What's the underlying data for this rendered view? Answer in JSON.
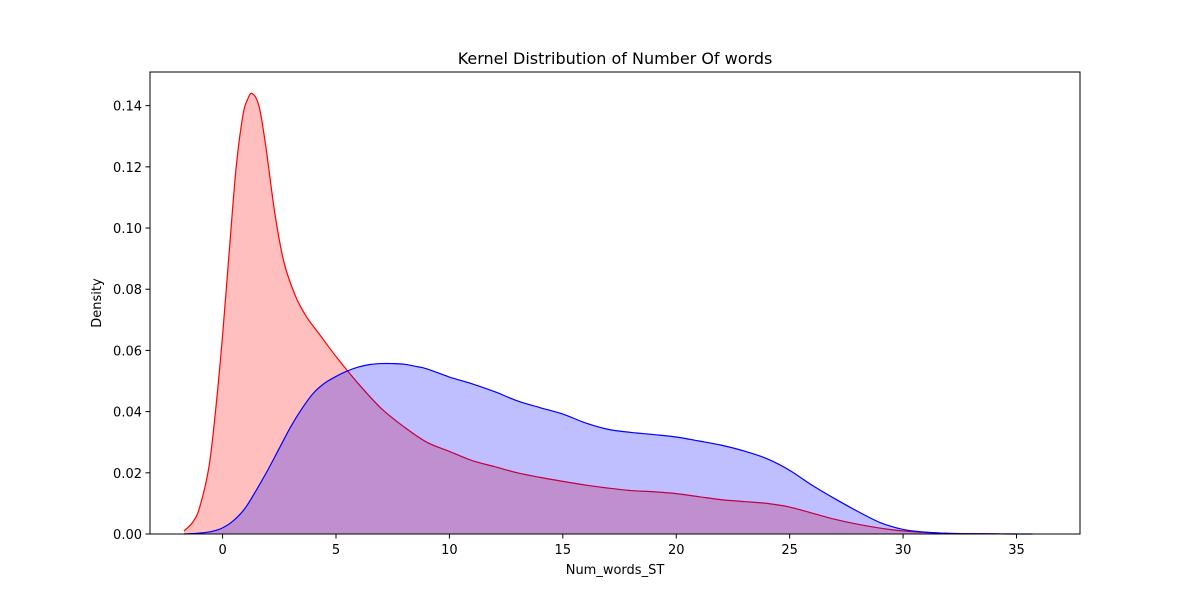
{
  "chart_data": {
    "type": "area",
    "title": "Kernel Distribution of Number Of words",
    "xlabel": "Num_words_ST",
    "ylabel": "Density",
    "xlim": [
      -3.2,
      37.8
    ],
    "ylim": [
      0,
      0.151
    ],
    "xticks": [
      0,
      5,
      10,
      15,
      20,
      25,
      30,
      35
    ],
    "xtick_labels": [
      "0",
      "5",
      "10",
      "15",
      "20",
      "25",
      "30",
      "35"
    ],
    "yticks": [
      0.0,
      0.02,
      0.04,
      0.06,
      0.08,
      0.1,
      0.12,
      0.14
    ],
    "ytick_labels": [
      "0.00",
      "0.02",
      "0.04",
      "0.06",
      "0.08",
      "0.10",
      "0.12",
      "0.14"
    ],
    "grid": false,
    "legend": "none",
    "series": [
      {
        "color": "#ff0000",
        "fill": "#ffbfbf",
        "x": [
          -1.7,
          -1.3,
          -1.0,
          -0.6,
          -0.3,
          0.0,
          0.3,
          0.6,
          0.9,
          1.1,
          1.3,
          1.6,
          1.9,
          2.3,
          2.7,
          3.2,
          3.7,
          4.3,
          5.0,
          6.0,
          7.0,
          8.0,
          9.0,
          10.0,
          11.0,
          12.0,
          13.0,
          14.0,
          15.0,
          16.0,
          17.0,
          18.0,
          19.0,
          20.0,
          21.0,
          22.0,
          23.0,
          24.0,
          25.0,
          26.0,
          27.0,
          28.0,
          29.0,
          30.0,
          31.0,
          32.0,
          33.0,
          34.0,
          35.0
        ],
        "y": [
          0.001,
          0.004,
          0.009,
          0.022,
          0.041,
          0.065,
          0.093,
          0.12,
          0.137,
          0.142,
          0.144,
          0.14,
          0.127,
          0.105,
          0.089,
          0.078,
          0.071,
          0.065,
          0.058,
          0.049,
          0.041,
          0.035,
          0.03,
          0.027,
          0.024,
          0.022,
          0.02,
          0.0185,
          0.0172,
          0.016,
          0.015,
          0.0142,
          0.0138,
          0.0132,
          0.0122,
          0.0112,
          0.0106,
          0.01,
          0.0088,
          0.0068,
          0.0048,
          0.0032,
          0.0019,
          0.001,
          0.0005,
          0.0002,
          0.0001,
          3e-05,
          0.0
        ],
        "name": ""
      },
      {
        "color": "#0000ff",
        "fill": "#bcbcff",
        "x": [
          -1.7,
          -1.0,
          -0.5,
          0.0,
          0.5,
          1.0,
          1.5,
          2.0,
          2.5,
          3.0,
          3.5,
          4.0,
          4.5,
          5.0,
          5.5,
          6.0,
          6.5,
          7.0,
          7.5,
          8.0,
          8.5,
          9.0,
          10.0,
          11.0,
          12.0,
          13.0,
          14.0,
          15.0,
          16.0,
          17.0,
          18.0,
          19.0,
          20.0,
          21.0,
          22.0,
          23.0,
          24.0,
          25.0,
          26.0,
          27.0,
          28.0,
          29.0,
          30.0,
          31.0,
          32.0,
          33.0,
          34.0,
          35.0,
          35.7
        ],
        "y": [
          0.0,
          0.0003,
          0.0008,
          0.002,
          0.0045,
          0.0085,
          0.0145,
          0.021,
          0.028,
          0.035,
          0.041,
          0.046,
          0.0493,
          0.0515,
          0.0533,
          0.0546,
          0.0554,
          0.0557,
          0.0557,
          0.0555,
          0.0548,
          0.054,
          0.0513,
          0.0491,
          0.0465,
          0.0435,
          0.0413,
          0.0392,
          0.0363,
          0.0342,
          0.0332,
          0.0325,
          0.0317,
          0.0304,
          0.029,
          0.0271,
          0.0246,
          0.0208,
          0.0159,
          0.0115,
          0.0074,
          0.0037,
          0.0015,
          0.0006,
          0.0002,
          8e-05,
          3e-05,
          1e-05,
          0.0
        ],
        "name": ""
      }
    ]
  }
}
